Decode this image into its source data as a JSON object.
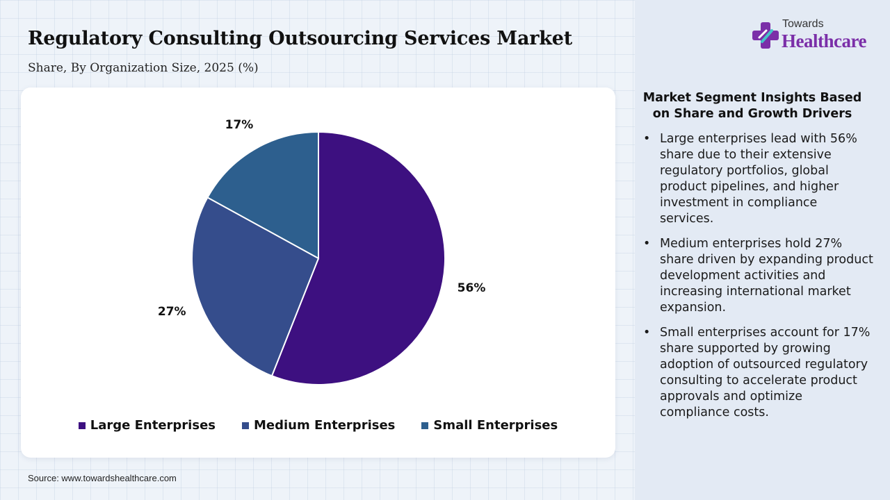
{
  "header": {
    "title": "Regulatory Consulting Outsourcing Services Market",
    "subtitle": "Share, By Organization Size, 2025 (%)"
  },
  "logo": {
    "top_text": "Towards",
    "main_text": "Healthcare"
  },
  "chart_data": {
    "type": "pie",
    "title": "Regulatory Consulting Outsourcing Services Market",
    "subtitle": "Share, By Organization Size, 2025 (%)",
    "categories": [
      "Large Enterprises",
      "Medium Enterprises",
      "Small Enterprises"
    ],
    "values": [
      56,
      27,
      17
    ],
    "value_labels": [
      "56%",
      "27%",
      "17%"
    ],
    "colors": [
      "#3d1080",
      "#354d8c",
      "#2d5f8e"
    ],
    "legend_position": "bottom"
  },
  "legend": {
    "items": [
      {
        "label": "Large Enterprises",
        "color": "#3d1080"
      },
      {
        "label": "Medium Enterprises",
        "color": "#354d8c"
      },
      {
        "label": "Small Enterprises",
        "color": "#2d5f8e"
      }
    ]
  },
  "insights": {
    "title": "Market Segment Insights Based on Share and Growth Drivers",
    "items": [
      "Large enterprises lead with 56% share due to their extensive regulatory portfolios, global product pipelines, and higher investment in compliance services.",
      "Medium enterprises hold 27% share driven by expanding product development activities and increasing international market expansion.",
      "Small enterprises account for 17% share supported by growing adoption of outsourced regulatory consulting to accelerate product approvals and optimize compliance costs."
    ]
  },
  "footer": {
    "source": "Source: www.towardshealthcare.com"
  },
  "colors": {
    "panel": "#e3eaf4",
    "brand": "#7b2fa8"
  }
}
